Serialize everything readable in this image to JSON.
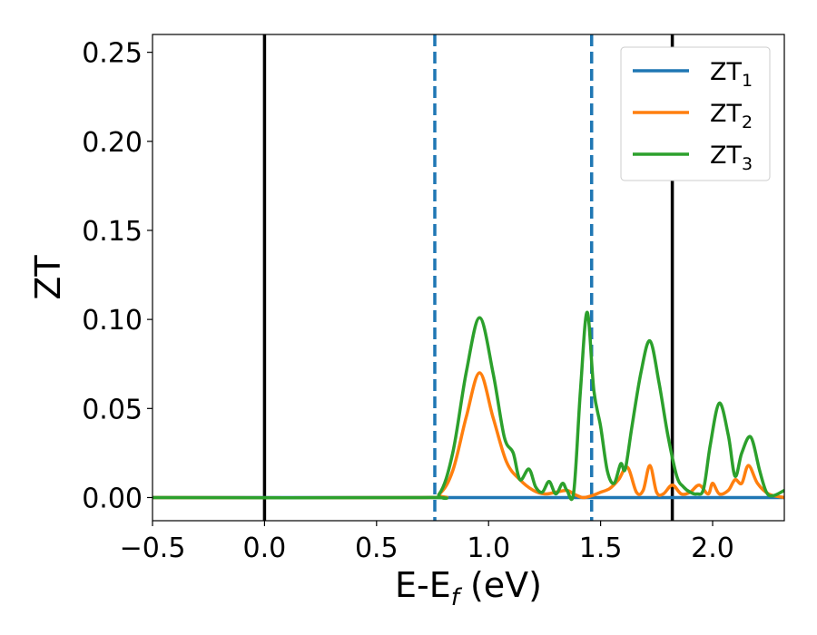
{
  "chart_data": {
    "type": "line",
    "xlabel": "E-E",
    "xlabel_sub": "f",
    "xlabel_unit": " (eV)",
    "ylabel": "ZT",
    "xlim": [
      -0.5,
      2.32
    ],
    "ylim": [
      -0.013,
      0.26
    ],
    "xticks": [
      -0.5,
      0.0,
      0.5,
      1.0,
      1.5,
      2.0
    ],
    "xtick_labels": [
      "−0.5",
      "0.0",
      "0.5",
      "1.0",
      "1.5",
      "2.0"
    ],
    "yticks": [
      0.0,
      0.05,
      0.1,
      0.15,
      0.2,
      0.25
    ],
    "ytick_labels": [
      "0.00",
      "0.05",
      "0.10",
      "0.15",
      "0.20",
      "0.25"
    ],
    "grid": false,
    "legend_position": "top-right",
    "reference_lines": [
      {
        "x": 0.0,
        "style": "solid",
        "color": "#000000"
      },
      {
        "x": 1.82,
        "style": "solid",
        "color": "#000000"
      },
      {
        "x": 0.76,
        "style": "dashed",
        "color": "#1f77b4"
      },
      {
        "x": 1.46,
        "style": "dashed",
        "color": "#1f77b4"
      }
    ],
    "series": [
      {
        "name": "ZT",
        "name_sub": "1",
        "color": "#1f77b4",
        "x": [
          -0.5,
          2.32
        ],
        "y": [
          0.0,
          0.0
        ]
      },
      {
        "name": "ZT",
        "name_sub": "2",
        "color": "#ff7f0e",
        "x": [
          -0.5,
          0.7,
          0.78,
          0.84,
          0.9,
          0.96,
          1.02,
          1.08,
          1.14,
          1.2,
          1.25,
          1.3,
          1.35,
          1.38,
          1.42,
          1.46,
          1.5,
          1.54,
          1.58,
          1.62,
          1.66,
          1.69,
          1.72,
          1.75,
          1.78,
          1.82,
          1.86,
          1.9,
          1.94,
          1.98,
          2.0,
          2.03,
          2.07,
          2.1,
          2.13,
          2.16,
          2.2,
          2.25,
          2.32
        ],
        "y": [
          0.0,
          0.0,
          0.002,
          0.015,
          0.045,
          0.07,
          0.045,
          0.02,
          0.01,
          0.004,
          0.002,
          0.003,
          0.004,
          0.002,
          0.0,
          0.001,
          0.003,
          0.005,
          0.01,
          0.017,
          0.003,
          0.004,
          0.018,
          0.003,
          0.002,
          0.007,
          0.002,
          0.003,
          0.007,
          0.002,
          0.008,
          0.002,
          0.004,
          0.01,
          0.008,
          0.018,
          0.008,
          0.002,
          0.0
        ]
      },
      {
        "name": "ZT",
        "name_sub": "3",
        "color": "#2ca02c",
        "x": [
          -0.5,
          0.7,
          0.78,
          0.84,
          0.9,
          0.96,
          1.02,
          1.07,
          1.11,
          1.14,
          1.18,
          1.21,
          1.24,
          1.27,
          1.3,
          1.33,
          1.35,
          1.38,
          1.41,
          1.44,
          1.47,
          1.5,
          1.53,
          1.56,
          1.59,
          1.61,
          1.64,
          1.68,
          1.72,
          1.76,
          1.8,
          1.84,
          1.87,
          1.9,
          1.93,
          1.96,
          1.99,
          2.03,
          2.07,
          2.1,
          2.13,
          2.17,
          2.21,
          2.24,
          2.27,
          2.32
        ],
        "y": [
          0.0,
          0.0,
          0.002,
          0.025,
          0.07,
          0.101,
          0.07,
          0.034,
          0.025,
          0.01,
          0.016,
          0.006,
          0.003,
          0.009,
          0.002,
          0.008,
          0.004,
          0.003,
          0.06,
          0.104,
          0.06,
          0.04,
          0.015,
          0.008,
          0.019,
          0.016,
          0.04,
          0.07,
          0.088,
          0.065,
          0.035,
          0.012,
          0.006,
          0.003,
          0.002,
          0.005,
          0.03,
          0.053,
          0.035,
          0.012,
          0.025,
          0.034,
          0.015,
          0.003,
          0.001,
          0.004
        ]
      }
    ]
  }
}
